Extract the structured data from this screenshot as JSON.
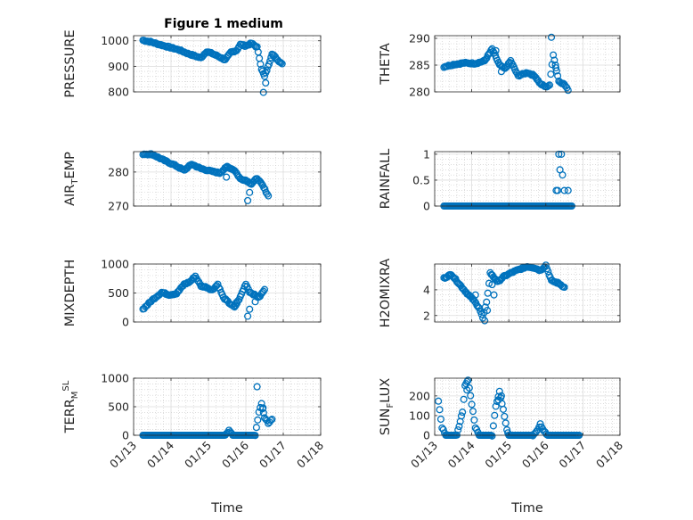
{
  "figure": {
    "title": "Figure 1 medium",
    "marker_color": "#0072BD",
    "grid": true,
    "x_axis": {
      "label": "Time",
      "tick_labels": [
        "01/13",
        "01/14",
        "01/15",
        "01/16",
        "01/17",
        "01/18"
      ]
    }
  },
  "chart_data": [
    {
      "type": "scatter",
      "ylabel_parts": [
        "PRESSURE"
      ],
      "ylim": [
        800,
        1020
      ],
      "yticks": [
        800,
        900,
        1000
      ],
      "xlim": [
        0,
        5
      ],
      "knots": [
        [
          0.25,
          1002
        ],
        [
          0.45,
          996
        ],
        [
          0.7,
          985
        ],
        [
          0.95,
          975
        ],
        [
          1.2,
          965
        ],
        [
          1.45,
          950
        ],
        [
          1.65,
          940
        ],
        [
          1.8,
          933
        ],
        [
          1.95,
          958
        ],
        [
          2.1,
          950
        ],
        [
          2.25,
          940
        ],
        [
          2.45,
          925
        ],
        [
          2.6,
          955
        ],
        [
          2.75,
          962
        ],
        [
          2.85,
          985
        ],
        [
          3.0,
          980
        ],
        [
          3.15,
          990
        ],
        [
          3.3,
          975
        ],
        [
          3.42,
          890
        ],
        [
          3.5,
          860
        ],
        [
          3.62,
          910
        ],
        [
          3.7,
          950
        ],
        [
          3.85,
          925
        ],
        [
          3.97,
          910
        ]
      ],
      "extra_points": [
        [
          3.47,
          798
        ],
        [
          3.53,
          835
        ]
      ]
    },
    {
      "type": "scatter",
      "ylabel_parts": [
        "THETA"
      ],
      "ylim": [
        280,
        290.5
      ],
      "yticks": [
        280,
        285,
        290
      ],
      "xlim": [
        0,
        5
      ],
      "knots": [
        [
          0.25,
          284.7
        ],
        [
          0.5,
          285.1
        ],
        [
          0.8,
          285.4
        ],
        [
          1.1,
          285.3
        ],
        [
          1.35,
          285.8
        ],
        [
          1.55,
          288.0
        ],
        [
          1.75,
          285.0
        ],
        [
          1.9,
          284.3
        ],
        [
          2.05,
          285.8
        ],
        [
          2.25,
          283.0
        ],
        [
          2.5,
          283.6
        ],
        [
          2.7,
          283.0
        ],
        [
          2.85,
          281.5
        ],
        [
          3.0,
          280.9
        ],
        [
          3.1,
          281.3
        ],
        [
          3.2,
          287.0
        ],
        [
          3.35,
          282.0
        ],
        [
          3.5,
          281.4
        ],
        [
          3.6,
          280.3
        ]
      ],
      "extra_points": [
        [
          3.15,
          290.2
        ],
        [
          3.27,
          284.5
        ],
        [
          1.65,
          287.7
        ],
        [
          1.8,
          283.8
        ]
      ]
    },
    {
      "type": "scatter",
      "ylabel_parts": [
        "AIR",
        "T",
        "EMP"
      ],
      "ylim": [
        270,
        286
      ],
      "yticks": [
        270,
        280
      ],
      "xlim": [
        0,
        5
      ],
      "knots": [
        [
          0.25,
          285.3
        ],
        [
          0.5,
          285.2
        ],
        [
          0.8,
          283.5
        ],
        [
          1.1,
          282.0
        ],
        [
          1.35,
          280.5
        ],
        [
          1.55,
          282.3
        ],
        [
          1.8,
          281.0
        ],
        [
          2.05,
          280.3
        ],
        [
          2.3,
          279.7
        ],
        [
          2.5,
          281.6
        ],
        [
          2.7,
          280.5
        ],
        [
          2.85,
          278.0
        ],
        [
          3.0,
          277.6
        ],
        [
          3.15,
          276.5
        ],
        [
          3.3,
          278.2
        ],
        [
          3.45,
          276.0
        ],
        [
          3.6,
          273.0
        ]
      ],
      "extra_points": [
        [
          3.05,
          271.6
        ],
        [
          3.1,
          274.0
        ],
        [
          2.48,
          278.5
        ]
      ]
    },
    {
      "type": "scatter",
      "ylabel_parts": [
        "RAINFALL"
      ],
      "ylim": [
        0,
        1.05
      ],
      "yticks": [
        0,
        0.5,
        1
      ],
      "xlim": [
        0,
        5
      ],
      "knots": [
        [
          0.25,
          0
        ],
        [
          3.7,
          0
        ]
      ],
      "extra_points": [
        [
          3.28,
          0.3
        ],
        [
          3.32,
          0.3
        ],
        [
          3.35,
          1.0
        ],
        [
          3.38,
          0.7
        ],
        [
          3.42,
          1.0
        ],
        [
          3.45,
          0.6
        ],
        [
          3.5,
          0.3
        ],
        [
          3.6,
          0.3
        ]
      ]
    },
    {
      "type": "scatter",
      "ylabel_parts": [
        "MIXDEPTH"
      ],
      "ylim": [
        0,
        1000
      ],
      "yticks": [
        0,
        500,
        1000
      ],
      "xlim": [
        0,
        5
      ],
      "knots": [
        [
          0.25,
          220
        ],
        [
          0.5,
          380
        ],
        [
          0.75,
          510
        ],
        [
          0.95,
          470
        ],
        [
          1.15,
          490
        ],
        [
          1.35,
          650
        ],
        [
          1.5,
          690
        ],
        [
          1.65,
          790
        ],
        [
          1.8,
          620
        ],
        [
          1.95,
          600
        ],
        [
          2.1,
          550
        ],
        [
          2.25,
          650
        ],
        [
          2.4,
          420
        ],
        [
          2.55,
          330
        ],
        [
          2.7,
          250
        ],
        [
          2.85,
          430
        ],
        [
          3.0,
          660
        ],
        [
          3.1,
          520
        ],
        [
          3.2,
          480
        ],
        [
          3.35,
          420
        ],
        [
          3.5,
          560
        ]
      ],
      "extra_points": [
        [
          3.05,
          100
        ],
        [
          3.1,
          220
        ],
        [
          3.25,
          350
        ],
        [
          2.75,
          340
        ]
      ]
    },
    {
      "type": "scatter",
      "ylabel_parts": [
        "H2OMIXRA"
      ],
      "ylim": [
        1.5,
        6.0
      ],
      "yticks": [
        2,
        4
      ],
      "xlim": [
        0,
        5
      ],
      "knots": [
        [
          0.25,
          4.9
        ],
        [
          0.45,
          5.2
        ],
        [
          0.65,
          4.5
        ],
        [
          0.85,
          3.8
        ],
        [
          1.05,
          3.2
        ],
        [
          1.2,
          2.6
        ],
        [
          1.3,
          1.8
        ],
        [
          1.4,
          3.0
        ],
        [
          1.5,
          5.3
        ],
        [
          1.7,
          4.6
        ],
        [
          1.85,
          5.0
        ],
        [
          2.05,
          5.3
        ],
        [
          2.3,
          5.6
        ],
        [
          2.5,
          5.8
        ],
        [
          2.7,
          5.7
        ],
        [
          2.85,
          5.5
        ],
        [
          3.0,
          5.9
        ],
        [
          3.15,
          4.7
        ],
        [
          3.35,
          4.5
        ],
        [
          3.5,
          4.2
        ]
      ],
      "extra_points": [
        [
          1.35,
          1.6
        ],
        [
          1.42,
          2.4
        ],
        [
          1.55,
          4.4
        ],
        [
          1.6,
          3.6
        ],
        [
          1.65,
          4.8
        ],
        [
          0.95,
          3.5
        ],
        [
          1.1,
          3.6
        ]
      ]
    },
    {
      "type": "scatter",
      "ylabel_parts": [
        "TERR",
        "M",
        "SL"
      ],
      "ylim": [
        0,
        1000
      ],
      "yticks": [
        0,
        500,
        1000
      ],
      "xlim": [
        0,
        5
      ],
      "knots": [
        [
          0.25,
          0
        ],
        [
          2.45,
          0
        ],
        [
          2.55,
          80
        ],
        [
          2.65,
          0
        ],
        [
          3.25,
          0
        ],
        [
          3.35,
          400
        ],
        [
          3.42,
          550
        ],
        [
          3.5,
          300
        ],
        [
          3.6,
          220
        ],
        [
          3.7,
          280
        ]
      ],
      "extra_points": [
        [
          3.3,
          850
        ],
        [
          3.46,
          480
        ]
      ]
    },
    {
      "type": "scatter",
      "ylabel_parts": [
        "SUN",
        "F",
        "LUX"
      ],
      "ylim": [
        0,
        290
      ],
      "yticks": [
        0,
        100,
        200
      ],
      "xlim": [
        0,
        5
      ],
      "knots": [
        [
          0.1,
          170
        ],
        [
          0.2,
          40
        ],
        [
          0.3,
          0
        ],
        [
          0.6,
          0
        ],
        [
          0.75,
          120
        ],
        [
          0.82,
          250
        ],
        [
          0.9,
          280
        ],
        [
          1.0,
          160
        ],
        [
          1.1,
          40
        ],
        [
          1.2,
          0
        ],
        [
          1.55,
          0
        ],
        [
          1.65,
          150
        ],
        [
          1.75,
          220
        ],
        [
          1.85,
          130
        ],
        [
          1.95,
          30
        ],
        [
          2.0,
          0
        ],
        [
          2.65,
          0
        ],
        [
          2.75,
          20
        ],
        [
          2.85,
          55
        ],
        [
          2.95,
          20
        ],
        [
          3.05,
          0
        ],
        [
          3.9,
          0
        ]
      ],
      "extra_points": [
        [
          0.87,
          230
        ],
        [
          1.72,
          180
        ],
        [
          1.8,
          200
        ]
      ]
    }
  ]
}
